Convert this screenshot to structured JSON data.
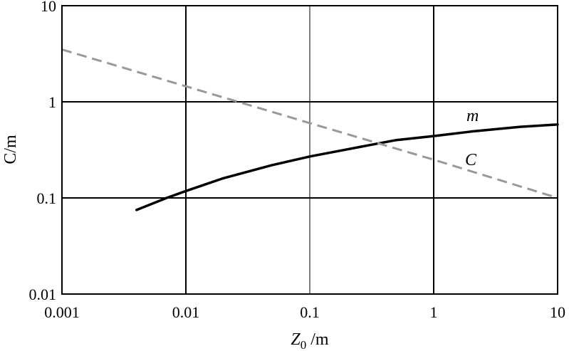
{
  "chart_data": {
    "type": "line",
    "xscale": "log",
    "yscale": "log",
    "xlim": [
      0.001,
      10
    ],
    "ylim": [
      0.01,
      10
    ],
    "grid": true,
    "xticks": [
      "0.001",
      "0.01",
      "0.1",
      "1",
      "10"
    ],
    "yticks": [
      "0.01",
      "0.1",
      "1",
      "10"
    ],
    "xlabel_main": "Z",
    "xlabel_sub": "0",
    "xlabel_unit": " /m",
    "ylabel": "C/m",
    "series": [
      {
        "name": "m",
        "style": "solid",
        "color": "#000000",
        "x": [
          0.004,
          0.007,
          0.01,
          0.02,
          0.05,
          0.1,
          0.2,
          0.5,
          1,
          2,
          5,
          10
        ],
        "y": [
          0.075,
          0.1,
          0.118,
          0.16,
          0.22,
          0.27,
          0.32,
          0.4,
          0.44,
          0.49,
          0.55,
          0.58
        ]
      },
      {
        "name": "C",
        "style": "dashed",
        "color": "#999999",
        "x": [
          0.001,
          0.01,
          0.1,
          1,
          10
        ],
        "y": [
          3.5,
          1.45,
          0.6,
          0.25,
          0.1
        ]
      }
    ]
  }
}
